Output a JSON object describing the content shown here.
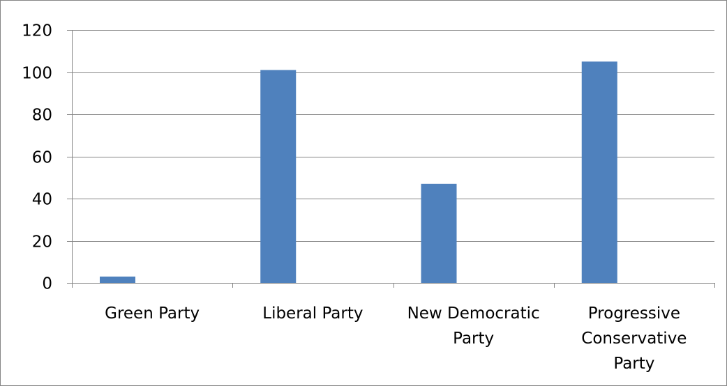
{
  "chart_data": {
    "type": "bar",
    "categories": [
      "Green Party",
      "Liberal Party",
      "New Democratic Party",
      "Progressive Conservative Party"
    ],
    "values": [
      3,
      101,
      47,
      105
    ],
    "ylim": [
      0,
      120
    ],
    "yticks": [
      0,
      20,
      40,
      60,
      80,
      100,
      120
    ],
    "grid": true,
    "legend": "none",
    "colors": {
      "bar": "#4f81bd",
      "grid": "#868686",
      "axis": "#868686",
      "frame": "#868686"
    }
  }
}
